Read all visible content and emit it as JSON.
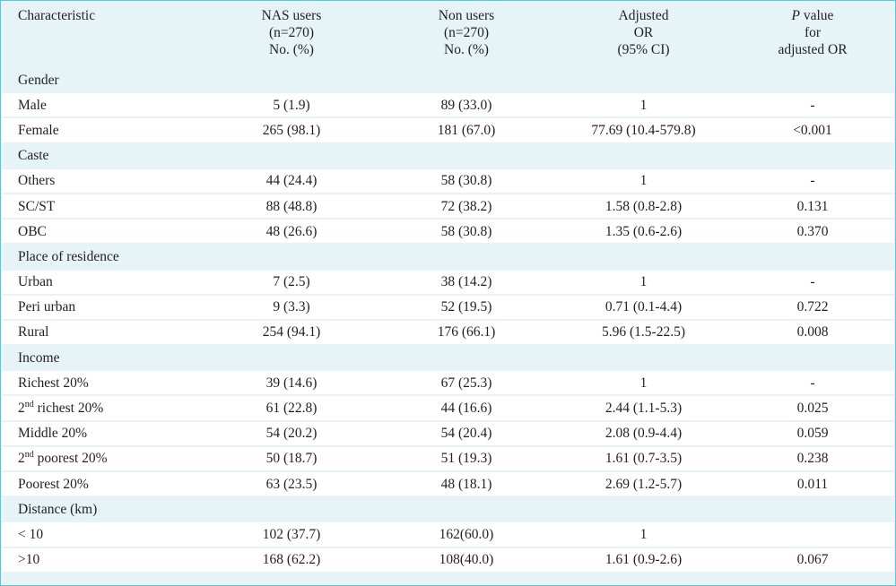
{
  "header": {
    "characteristic": "Characteristic",
    "nas": [
      "NAS users",
      "(n=270)",
      "No. (%)"
    ],
    "non": [
      "Non users",
      "(n=270)",
      "No. (%)"
    ],
    "or": [
      "Adjusted",
      "OR",
      "(95% CI)"
    ],
    "p_italic": "P",
    "p": [
      " value",
      "for",
      "adjusted OR"
    ]
  },
  "sections": [
    {
      "title": "Gender",
      "rows": [
        {
          "label": "Male",
          "nas": "5 (1.9)",
          "non": "89 (33.0)",
          "or": "1",
          "p": "-"
        },
        {
          "label": "Female",
          "nas": "265 (98.1)",
          "non": "181 (67.0)",
          "or": "77.69 (10.4-579.8)",
          "p": "<0.001"
        }
      ]
    },
    {
      "title": "Caste",
      "rows": [
        {
          "label": "Others",
          "nas": "44 (24.4)",
          "non": "58 (30.8)",
          "or": "1",
          "p": "-"
        },
        {
          "label": "SC/ST",
          "nas": "88 (48.8)",
          "non": "72 (38.2)",
          "or": "1.58 (0.8-2.8)",
          "p": "0.131"
        },
        {
          "label": "OBC",
          "nas": "48 (26.6)",
          "non": "58 (30.8)",
          "or": "1.35 (0.6-2.6)",
          "p": "0.370"
        }
      ]
    },
    {
      "title": "Place of residence",
      "rows": [
        {
          "label": "Urban",
          "nas": "7 (2.5)",
          "non": "38 (14.2)",
          "or": "1",
          "p": "-"
        },
        {
          "label": "Peri urban",
          "nas": "9 (3.3)",
          "non": "52 (19.5)",
          "or": "0.71 (0.1-4.4)",
          "p": "0.722"
        },
        {
          "label": "Rural",
          "nas": "254 (94.1)",
          "non": "176 (66.1)",
          "or": "5.96 (1.5-22.5)",
          "p": "0.008"
        }
      ]
    },
    {
      "title": "Income",
      "rows": [
        {
          "label": "Richest 20%",
          "nas": "39 (14.6)",
          "non": "67 (25.3)",
          "or": "1",
          "p": "-"
        },
        {
          "label_pre": "2",
          "label_sup": "nd",
          "label": " richest 20%",
          "nas": "61 (22.8)",
          "non": "44 (16.6)",
          "or": "2.44 (1.1-5.3)",
          "p": "0.025"
        },
        {
          "label": "Middle 20%",
          "nas": "54 (20.2)",
          "non": "54 (20.4)",
          "or": "2.08 (0.9-4.4)",
          "p": "0.059"
        },
        {
          "label_pre": "2",
          "label_sup": "nd",
          "label": " poorest 20%",
          "nas": "50 (18.7)",
          "non": "51 (19.3)",
          "or": "1.61 (0.7-3.5)",
          "p": "0.238"
        },
        {
          "label": "Poorest 20%",
          "nas": "63 (23.5)",
          "non": "48 (18.1)",
          "or": "2.69 (1.2-5.7)",
          "p": "0.011"
        }
      ]
    },
    {
      "title": "Distance (km)",
      "rows": [
        {
          "label": "< 10",
          "nas": "102 (37.7)",
          "non": "162(60.0)",
          "or": "1",
          "p": ""
        },
        {
          "label": ">10",
          "nas": "168 (62.2)",
          "non": "108(40.0)",
          "or": "1.61 (0.9-2.6)",
          "p": "0.067"
        }
      ]
    }
  ]
}
